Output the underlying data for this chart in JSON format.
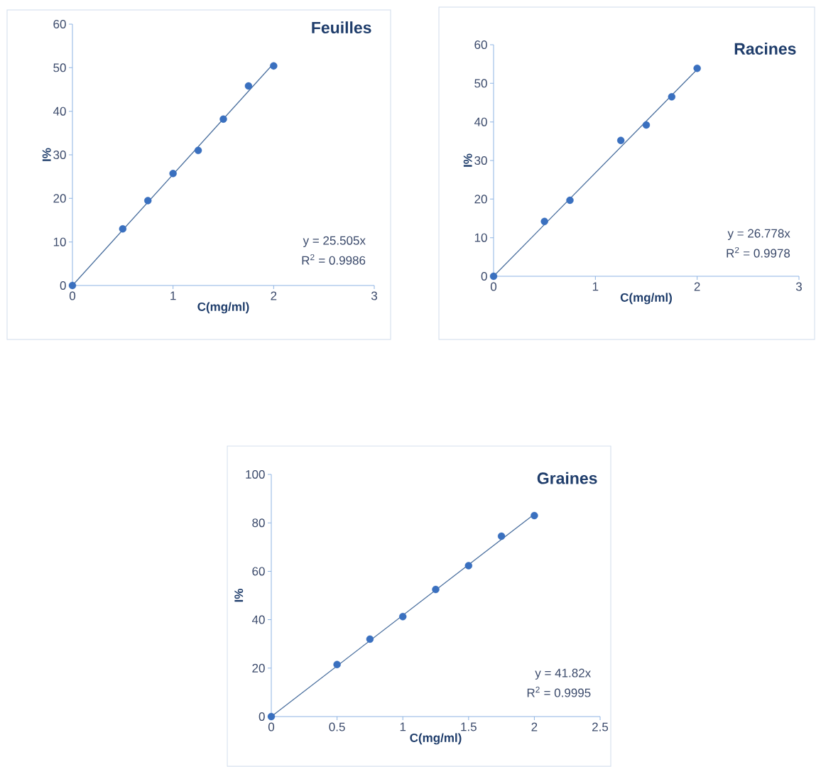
{
  "chart_data": [
    {
      "type": "scatter",
      "title": "Feuilles",
      "xlabel": "C(mg/ml)",
      "ylabel": "I%",
      "xlim": [
        0,
        3
      ],
      "xticks": [
        0,
        1,
        2,
        3
      ],
      "ylim": [
        0,
        60
      ],
      "yticks": [
        0,
        10,
        20,
        30,
        40,
        50,
        60
      ],
      "grid": false,
      "annotations": [
        "y = 25.505x",
        "R$^{2}$ = 0.9986"
      ],
      "series": [
        {
          "type": "line",
          "color": "#4a6f9e",
          "x": [
            0,
            2
          ],
          "values": [
            0,
            51
          ],
          "marker": "none",
          "line_style": "solid"
        },
        {
          "color": "#3a70bf",
          "marker": "circle",
          "x": [
            0,
            0.5,
            0.75,
            1,
            1.25,
            1.5,
            1.75,
            2
          ],
          "values": [
            0,
            13,
            19.5,
            25.7,
            31,
            38.2,
            45.8,
            50.4
          ]
        }
      ]
    },
    {
      "type": "scatter",
      "title": "Racines",
      "xlabel": "C(mg/ml)",
      "ylabel": "I%",
      "xlim": [
        0,
        3
      ],
      "xticks": [
        0,
        1,
        2,
        3
      ],
      "ylim": [
        0,
        60
      ],
      "yticks": [
        0,
        10,
        20,
        30,
        40,
        50,
        60
      ],
      "grid": false,
      "annotations": [
        "y = 26.778x",
        "R$^{2}$ = 0.9978"
      ],
      "series": [
        {
          "type": "line",
          "color": "#4a6f9e",
          "x": [
            0,
            2
          ],
          "values": [
            0,
            53.6
          ],
          "marker": "none",
          "line_style": "solid"
        },
        {
          "color": "#3a70bf",
          "marker": "circle",
          "x": [
            0,
            0.5,
            0.75,
            1.25,
            1.5,
            1.75,
            2
          ],
          "values": [
            0,
            14.2,
            19.7,
            35.2,
            39.2,
            46.5,
            53.9
          ]
        }
      ]
    },
    {
      "type": "scatter",
      "title": "Graines",
      "xlabel": "C(mg/ml)",
      "ylabel": "I%",
      "xlim": [
        0,
        2.5
      ],
      "xticks": [
        0,
        0.5,
        1,
        1.5,
        2,
        2.5
      ],
      "ylim": [
        0,
        100
      ],
      "yticks": [
        0,
        20,
        40,
        60,
        80,
        100
      ],
      "grid": false,
      "annotations": [
        "y = 41.82x",
        "R$^{2}$ = 0.9995"
      ],
      "series": [
        {
          "type": "line",
          "color": "#4a6f9e",
          "x": [
            0,
            2
          ],
          "values": [
            0,
            83.6
          ],
          "marker": "none",
          "line_style": "solid"
        },
        {
          "color": "#3a70bf",
          "marker": "circle",
          "x": [
            0,
            0.5,
            0.75,
            1,
            1.25,
            1.5,
            1.75,
            2
          ],
          "values": [
            0,
            21.5,
            32,
            41.3,
            52.5,
            62.3,
            74.5,
            83
          ]
        }
      ]
    }
  ]
}
